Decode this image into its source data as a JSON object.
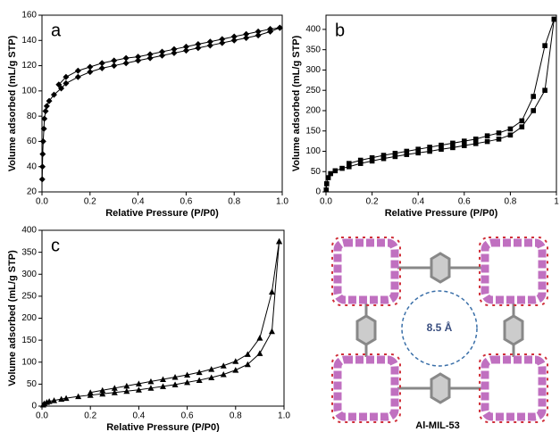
{
  "chart_data": [
    {
      "type": "line",
      "panel_label": "a",
      "xlabel": "Relative Pressure (P/P0)",
      "ylabel": "Volume adsorbed (mL/g STP)",
      "xlim": [
        0,
        1.0
      ],
      "ylim": [
        20,
        160
      ],
      "xticks": [
        {
          "value": 0,
          "label": "0.0"
        },
        0.2,
        0.4,
        0.6,
        0.8,
        {
          "value": 1,
          "label": "1.0"
        }
      ],
      "yticks": [
        20,
        40,
        60,
        80,
        100,
        120,
        140,
        160
      ],
      "grid": false,
      "series": [
        {
          "color": "#000000",
          "marker": "diamond",
          "x": [
            0.001,
            0.002,
            0.003,
            0.005,
            0.008,
            0.01,
            0.015,
            0.02,
            0.03,
            0.05,
            0.08,
            0.1,
            0.15,
            0.2,
            0.25,
            0.3,
            0.35,
            0.4,
            0.45,
            0.5,
            0.55,
            0.6,
            0.65,
            0.7,
            0.75,
            0.8,
            0.85,
            0.9,
            0.95,
            0.99
          ],
          "values": [
            30,
            40,
            50,
            60,
            70,
            78,
            84,
            88,
            92,
            97,
            102,
            106,
            111,
            115,
            118,
            120,
            122,
            124,
            126,
            128,
            130,
            132,
            134,
            136,
            138,
            140,
            142,
            144,
            147,
            150
          ]
        },
        {
          "color": "#000000",
          "marker": "diamond",
          "x": [
            0.99,
            0.95,
            0.9,
            0.85,
            0.8,
            0.75,
            0.7,
            0.65,
            0.6,
            0.55,
            0.5,
            0.45,
            0.4,
            0.35,
            0.3,
            0.25,
            0.2,
            0.15,
            0.1,
            0.07
          ],
          "values": [
            150,
            149,
            147,
            145,
            143,
            141,
            139,
            137,
            135,
            133,
            131,
            129,
            127,
            126,
            124,
            122,
            119,
            116,
            111,
            105
          ]
        }
      ]
    },
    {
      "type": "line",
      "panel_label": "b",
      "xlabel": "Relative Pressure (P/P0)",
      "ylabel": "Volume adsorbed (mL/g STP)",
      "xlim": [
        0,
        1
      ],
      "ylim": [
        0,
        435
      ],
      "xticks": [
        {
          "value": 0,
          "label": "0.0"
        },
        0.2,
        0.4,
        0.6,
        0.8,
        1
      ],
      "yticks": [
        0,
        50,
        100,
        150,
        200,
        250,
        300,
        350,
        400
      ],
      "grid": false,
      "series": [
        {
          "color": "#000000",
          "marker": "square",
          "x": [
            0.001,
            0.003,
            0.01,
            0.02,
            0.04,
            0.07,
            0.1,
            0.15,
            0.2,
            0.25,
            0.3,
            0.35,
            0.4,
            0.45,
            0.5,
            0.55,
            0.6,
            0.65,
            0.7,
            0.75,
            0.8,
            0.85,
            0.9,
            0.95,
            0.99
          ],
          "values": [
            5,
            20,
            35,
            45,
            52,
            58,
            62,
            70,
            76,
            82,
            87,
            92,
            96,
            100,
            105,
            109,
            114,
            119,
            124,
            130,
            140,
            160,
            200,
            250,
            425
          ]
        },
        {
          "color": "#000000",
          "marker": "square",
          "x": [
            0.99,
            0.95,
            0.9,
            0.85,
            0.8,
            0.75,
            0.7,
            0.65,
            0.6,
            0.55,
            0.5,
            0.45,
            0.4,
            0.35,
            0.3,
            0.25,
            0.2,
            0.15,
            0.1
          ],
          "values": [
            425,
            360,
            235,
            175,
            155,
            145,
            138,
            130,
            125,
            120,
            115,
            110,
            105,
            100,
            95,
            90,
            84,
            78,
            70
          ]
        }
      ]
    },
    {
      "type": "line",
      "panel_label": "c",
      "xlabel": "Relative Pressure (P/P0)",
      "ylabel": "Volume adsorbed (mL/g STP)",
      "xlim": [
        0,
        1.0
      ],
      "ylim": [
        0,
        400
      ],
      "xticks": [
        {
          "value": 0,
          "label": "0.0"
        },
        0.2,
        0.4,
        0.6,
        0.8,
        {
          "value": 1,
          "label": "1.0"
        }
      ],
      "yticks": [
        0,
        50,
        100,
        150,
        200,
        250,
        300,
        350,
        400
      ],
      "grid": false,
      "series": [
        {
          "color": "#000000",
          "marker": "triangle",
          "x": [
            0.005,
            0.01,
            0.02,
            0.03,
            0.05,
            0.08,
            0.1,
            0.15,
            0.2,
            0.25,
            0.3,
            0.35,
            0.4,
            0.45,
            0.5,
            0.55,
            0.6,
            0.65,
            0.7,
            0.75,
            0.8,
            0.85,
            0.9,
            0.95,
            0.98
          ],
          "values": [
            3,
            6,
            9,
            11,
            13,
            16,
            18,
            22,
            25,
            28,
            31,
            34,
            37,
            41,
            45,
            49,
            54,
            59,
            65,
            72,
            82,
            95,
            120,
            170,
            375
          ]
        },
        {
          "color": "#000000",
          "marker": "triangle",
          "x": [
            0.98,
            0.95,
            0.9,
            0.85,
            0.8,
            0.75,
            0.7,
            0.65,
            0.6,
            0.55,
            0.5,
            0.45,
            0.4,
            0.35,
            0.3,
            0.25,
            0.2
          ],
          "values": [
            375,
            260,
            155,
            118,
            102,
            92,
            84,
            77,
            71,
            66,
            61,
            56,
            51,
            46,
            41,
            36,
            31
          ]
        }
      ]
    }
  ],
  "structure": {
    "pore_label": "8.5 Å",
    "name": "Al-MIL-53"
  }
}
